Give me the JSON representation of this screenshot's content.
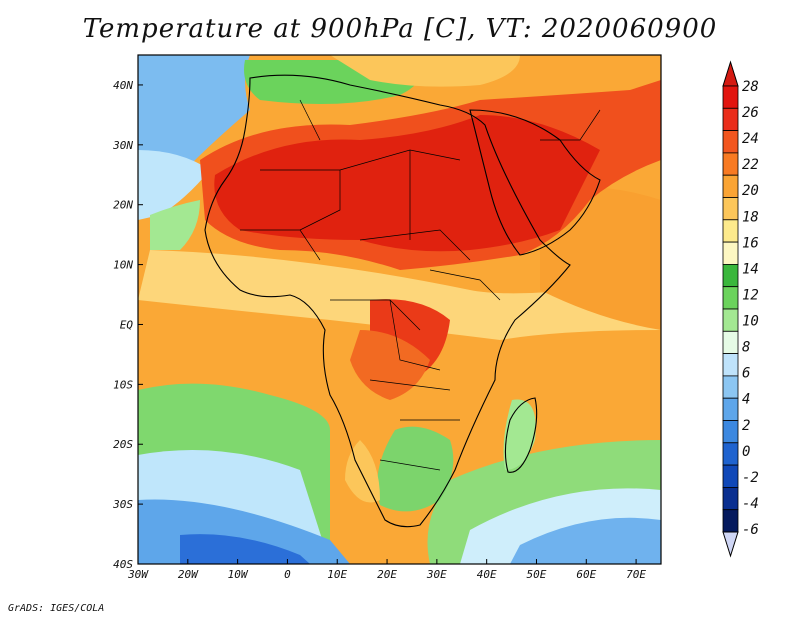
{
  "title": "Temperature at 900hPa [C], VT: 2020060900",
  "credit": "GrADS: IGES/COLA",
  "map": {
    "type": "filled-contour-map",
    "variable": "Temperature",
    "level": "900hPa",
    "unit": "C",
    "valid_time": "2020060900",
    "lon_range": [
      -30,
      75
    ],
    "lat_range": [
      -40,
      45
    ],
    "lon_ticks": [
      -30,
      -20,
      -10,
      0,
      10,
      20,
      30,
      40,
      50,
      60,
      70
    ],
    "lon_tick_labels": [
      "30W",
      "20W",
      "10W",
      "0",
      "10E",
      "20E",
      "30E",
      "40E",
      "50E",
      "60E",
      "70E"
    ],
    "lat_ticks": [
      40,
      30,
      20,
      10,
      0,
      -10,
      -20,
      -30,
      -40
    ],
    "lat_tick_labels": [
      "40N",
      "30N",
      "20N",
      "10N",
      "EQ",
      "10S",
      "20S",
      "30S",
      "40S"
    ]
  },
  "colorbar": {
    "levels": [
      28,
      26,
      24,
      22,
      20,
      18,
      16,
      14,
      12,
      10,
      8,
      6,
      4,
      2,
      0,
      -2,
      -4,
      -6
    ],
    "labels": [
      "28",
      "26",
      "24",
      "22",
      "20",
      "18",
      "16",
      "14",
      "12",
      "10",
      "8",
      "6",
      "4",
      "2",
      "0",
      "-2",
      "-4",
      "-6"
    ],
    "colors": [
      "#e2150f",
      "#ea2d1a",
      "#f2561f",
      "#f87a22",
      "#faa434",
      "#fcc65a",
      "#fdea8c",
      "#fdf7c2",
      "#3ab73c",
      "#6bd35c",
      "#a3e892",
      "#e6fbe6",
      "#bfe3fb",
      "#8cc6f2",
      "#5ea6ea",
      "#3c88e0",
      "#1f63cf",
      "#1048b8",
      "#0a2f90",
      "#051a5e"
    ],
    "top_cap_color": "#d41a12",
    "bottom_cap_color": "#cfd6f5"
  }
}
